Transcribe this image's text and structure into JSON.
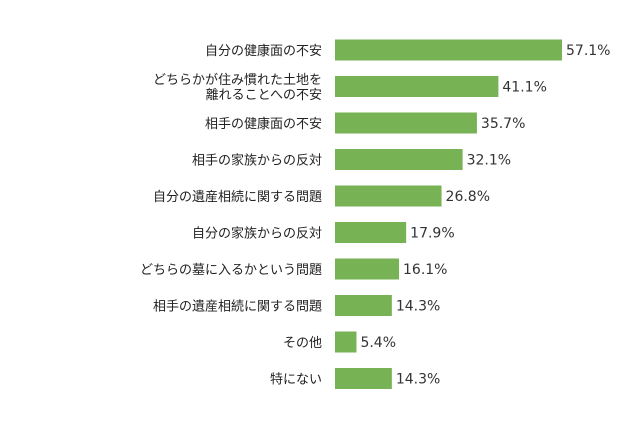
{
  "chart_data": {
    "type": "bar",
    "orientation": "horizontal",
    "categories": [
      [
        "自分の健康面の不安"
      ],
      [
        "どちらかが住み慣れた土地を",
        "離れることへの不安"
      ],
      [
        "相手の健康面の不安"
      ],
      [
        "相手の家族からの反対"
      ],
      [
        "自分の遺産相続に関する問題"
      ],
      [
        "自分の家族からの反対"
      ],
      [
        "どちらの墓に入るかという問題"
      ],
      [
        "相手の遺産相続に関する問題"
      ],
      [
        "その他"
      ],
      [
        "特にない"
      ]
    ],
    "values": [
      57.1,
      41.1,
      35.7,
      32.1,
      26.8,
      17.9,
      16.1,
      14.3,
      5.4,
      14.3
    ],
    "value_labels": [
      "57.1%",
      "41.1%",
      "35.7%",
      "32.1%",
      "26.8%",
      "17.9%",
      "16.1%",
      "14.3%",
      "5.4%",
      "14.3%"
    ],
    "xlim": [
      0,
      57.1
    ],
    "bar_color": "#77b255",
    "grid": false,
    "legend": "none"
  }
}
